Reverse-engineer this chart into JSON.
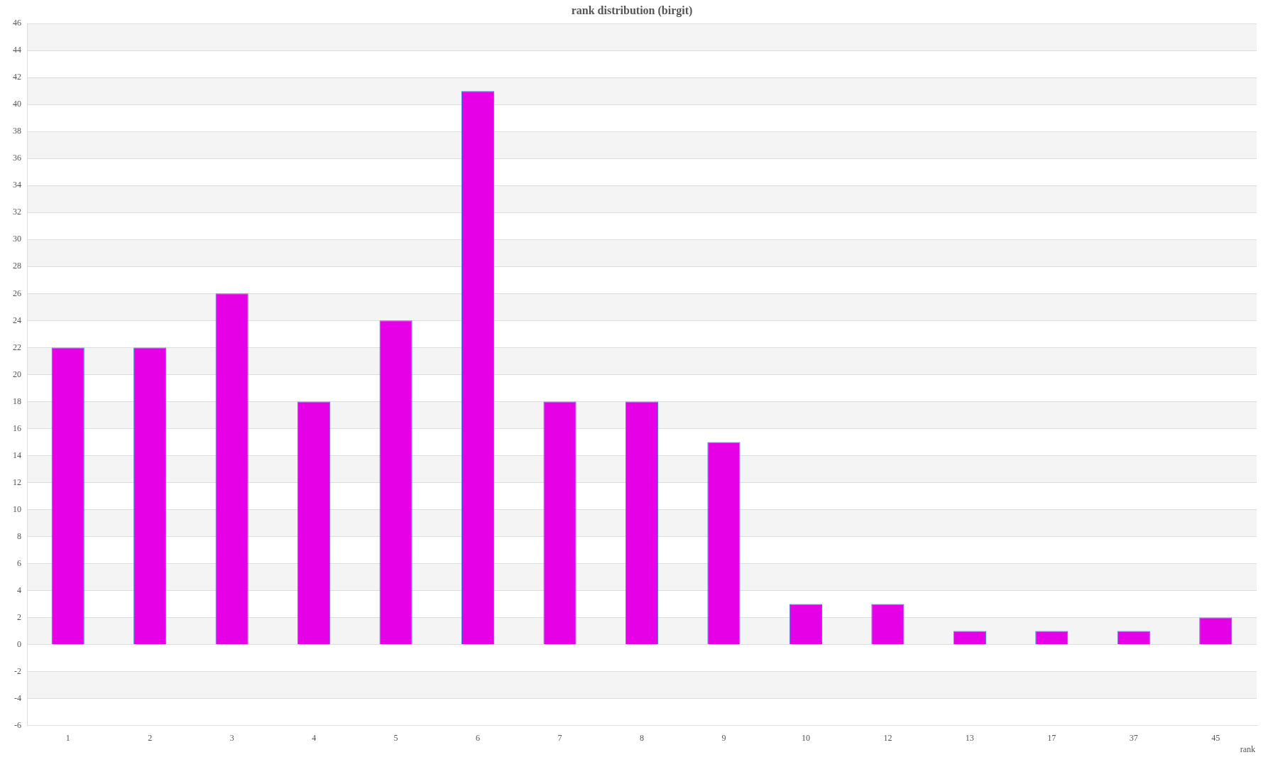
{
  "chart_data": {
    "type": "bar",
    "title": "rank distribution (birgit)",
    "xlabel": "rank",
    "categories": [
      "1",
      "2",
      "3",
      "4",
      "5",
      "6",
      "7",
      "8",
      "9",
      "10",
      "12",
      "13",
      "17",
      "37",
      "45"
    ],
    "values": [
      22,
      22,
      26,
      18,
      24,
      41,
      18,
      18,
      15,
      3,
      3,
      1,
      1,
      1,
      2
    ],
    "color": "#e600e6",
    "ylim": [
      -6,
      46
    ],
    "yticks": [
      -6,
      -4,
      -2,
      0,
      2,
      4,
      6,
      8,
      10,
      12,
      14,
      16,
      18,
      20,
      22,
      24,
      26,
      28,
      30,
      32,
      34,
      36,
      38,
      40,
      42,
      44,
      46
    ],
    "grid": "y",
    "legend": false
  }
}
